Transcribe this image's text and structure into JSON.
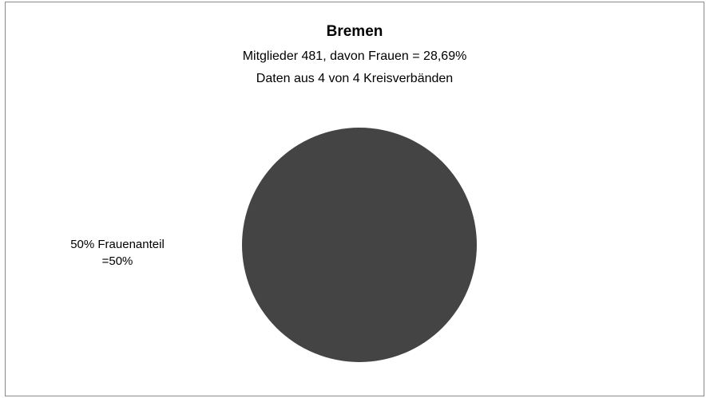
{
  "chart_data": {
    "type": "pie",
    "title": "Bremen",
    "subtitle_lines": [
      "Mitglieder 481, davon  Frauen = 28,69%",
      "Daten aus 4 von 4 Kreisverbänden"
    ],
    "slices": [
      {
        "label_line1": "50% Frauenanteil",
        "label_line2": "=50%",
        "value": 50,
        "color": "#444444"
      }
    ]
  }
}
